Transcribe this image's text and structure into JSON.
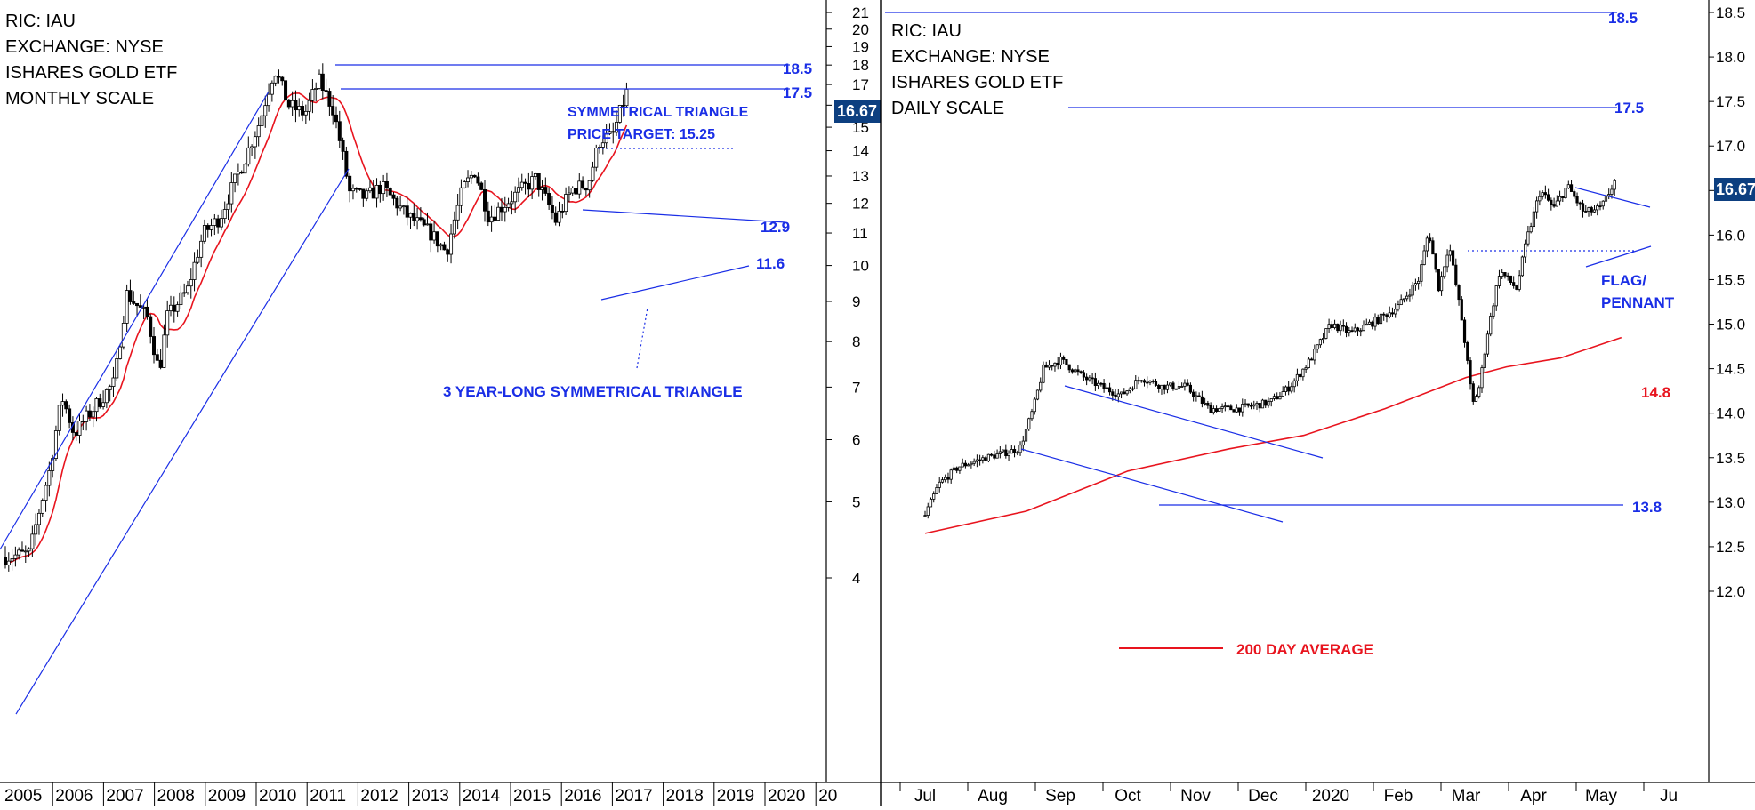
{
  "chart_data": [
    {
      "type": "candlestick",
      "title_lines": [
        "RIC: IAU",
        "EXCHANGE: NYSE",
        "ISHARES GOLD ETF",
        "MONTHLY SCALE"
      ],
      "y_scale": "log",
      "ylim": [
        3.6,
        22
      ],
      "yticks": [
        4,
        5,
        6,
        7,
        8,
        9,
        10,
        11,
        12,
        13,
        14,
        15,
        16,
        17,
        18,
        19,
        20,
        21
      ],
      "x_labels": [
        "2005",
        "2006",
        "2007",
        "2008",
        "2009",
        "2010",
        "2011",
        "2012",
        "2013",
        "2014",
        "2015",
        "2016",
        "2017",
        "2018",
        "2019",
        "2020",
        "20"
      ],
      "last_price_label": "16.67",
      "levels": [
        {
          "label": "18.5",
          "value": 18.5
        },
        {
          "label": "17.5",
          "value": 17.5
        }
      ],
      "pattern_line_labels": [
        {
          "label": "12.9",
          "value": 12.9
        },
        {
          "label": "11.6",
          "value": 11.6
        }
      ],
      "annotations": {
        "target_line1": "SYMMETRICAL TRIANGLE",
        "target_line2": "PRICE TARGET: 15.25",
        "target_value": 15.25,
        "pattern_label": "3 YEAR-LONG SYMMETRICAL TRIANGLE"
      },
      "moving_average": {
        "color": "#e8141e"
      },
      "series_anchors": [
        {
          "x": 2005.0,
          "y": 4.25
        },
        {
          "x": 2005.6,
          "y": 4.3
        },
        {
          "x": 2006.1,
          "y": 5.5
        },
        {
          "x": 2006.4,
          "y": 6.8
        },
        {
          "x": 2006.7,
          "y": 6.1
        },
        {
          "x": 2007.2,
          "y": 6.6
        },
        {
          "x": 2007.7,
          "y": 7.1
        },
        {
          "x": 2008.0,
          "y": 9.2
        },
        {
          "x": 2008.5,
          "y": 8.6
        },
        {
          "x": 2008.8,
          "y": 7.3
        },
        {
          "x": 2009.0,
          "y": 8.6
        },
        {
          "x": 2009.5,
          "y": 9.3
        },
        {
          "x": 2009.9,
          "y": 11.0
        },
        {
          "x": 2010.3,
          "y": 11.5
        },
        {
          "x": 2010.9,
          "y": 13.6
        },
        {
          "x": 2011.3,
          "y": 15.3
        },
        {
          "x": 2011.65,
          "y": 17.8
        },
        {
          "x": 2012.0,
          "y": 16.0
        },
        {
          "x": 2012.4,
          "y": 15.6
        },
        {
          "x": 2012.75,
          "y": 17.2
        },
        {
          "x": 2013.1,
          "y": 15.8
        },
        {
          "x": 2013.5,
          "y": 12.4
        },
        {
          "x": 2013.9,
          "y": 12.2
        },
        {
          "x": 2014.3,
          "y": 12.6
        },
        {
          "x": 2014.9,
          "y": 11.6
        },
        {
          "x": 2015.5,
          "y": 11.0
        },
        {
          "x": 2015.9,
          "y": 10.4
        },
        {
          "x": 2016.3,
          "y": 12.5
        },
        {
          "x": 2016.6,
          "y": 13.2
        },
        {
          "x": 2016.95,
          "y": 11.5
        },
        {
          "x": 2017.6,
          "y": 12.3
        },
        {
          "x": 2018.1,
          "y": 12.9
        },
        {
          "x": 2018.6,
          "y": 11.4
        },
        {
          "x": 2019.0,
          "y": 12.5
        },
        {
          "x": 2019.4,
          "y": 12.7
        },
        {
          "x": 2019.7,
          "y": 14.5
        },
        {
          "x": 2020.0,
          "y": 14.6
        },
        {
          "x": 2020.35,
          "y": 16.6
        }
      ]
    },
    {
      "type": "candlestick",
      "title_lines": [
        "RIC: IAU",
        "EXCHANGE: NYSE",
        "ISHARES GOLD ETF",
        "DAILY SCALE"
      ],
      "y_scale": "linear",
      "ylim": [
        11.8,
        18.6
      ],
      "yticks": [
        12.0,
        12.5,
        13.0,
        13.5,
        14.0,
        14.5,
        15.0,
        15.5,
        16.0,
        16.5,
        17.0,
        17.5,
        18.0,
        18.5
      ],
      "x_labels": [
        "Jul",
        "Aug",
        "Sep",
        "Oct",
        "Nov",
        "Dec",
        "2020",
        "Feb",
        "Mar",
        "Apr",
        "May",
        "Ju"
      ],
      "last_price_label": "16.67",
      "levels": [
        {
          "label": "18.5",
          "value": 18.5
        },
        {
          "label": "17.5",
          "value": 17.5
        },
        {
          "label": "13.8",
          "value": 13.8
        }
      ],
      "annotations": {
        "flag_line1": "FLAG/",
        "flag_line2": "PENNANT",
        "ma_value_label": "14.8",
        "ma_legend": "200 DAY AVERAGE"
      },
      "moving_average": {
        "color": "#e8141e",
        "period_days": 200
      },
      "series_anchors": [
        {
          "x": 0.0,
          "y": 12.85
        },
        {
          "x": 0.2,
          "y": 13.2
        },
        {
          "x": 0.5,
          "y": 13.4
        },
        {
          "x": 0.9,
          "y": 13.5
        },
        {
          "x": 1.4,
          "y": 13.6
        },
        {
          "x": 1.6,
          "y": 14.05
        },
        {
          "x": 1.75,
          "y": 14.5
        },
        {
          "x": 2.0,
          "y": 14.6
        },
        {
          "x": 2.35,
          "y": 14.4
        },
        {
          "x": 2.6,
          "y": 14.3
        },
        {
          "x": 2.9,
          "y": 14.2
        },
        {
          "x": 3.2,
          "y": 14.4
        },
        {
          "x": 3.5,
          "y": 14.3
        },
        {
          "x": 3.85,
          "y": 14.3
        },
        {
          "x": 4.2,
          "y": 14.05
        },
        {
          "x": 4.6,
          "y": 14.05
        },
        {
          "x": 5.1,
          "y": 14.12
        },
        {
          "x": 5.4,
          "y": 14.3
        },
        {
          "x": 5.7,
          "y": 14.6
        },
        {
          "x": 6.0,
          "y": 15.0
        },
        {
          "x": 6.3,
          "y": 14.9
        },
        {
          "x": 6.7,
          "y": 15.05
        },
        {
          "x": 7.0,
          "y": 15.2
        },
        {
          "x": 7.3,
          "y": 15.5
        },
        {
          "x": 7.45,
          "y": 16.05
        },
        {
          "x": 7.6,
          "y": 15.4
        },
        {
          "x": 7.75,
          "y": 15.9
        },
        {
          "x": 7.95,
          "y": 15.0
        },
        {
          "x": 8.1,
          "y": 14.1
        },
        {
          "x": 8.2,
          "y": 14.3
        },
        {
          "x": 8.32,
          "y": 14.9
        },
        {
          "x": 8.5,
          "y": 15.6
        },
        {
          "x": 8.75,
          "y": 15.4
        },
        {
          "x": 8.9,
          "y": 15.95
        },
        {
          "x": 9.1,
          "y": 16.5
        },
        {
          "x": 9.3,
          "y": 16.3
        },
        {
          "x": 9.5,
          "y": 16.55
        },
        {
          "x": 9.75,
          "y": 16.25
        },
        {
          "x": 10.0,
          "y": 16.3
        },
        {
          "x": 10.2,
          "y": 16.6
        }
      ]
    }
  ]
}
